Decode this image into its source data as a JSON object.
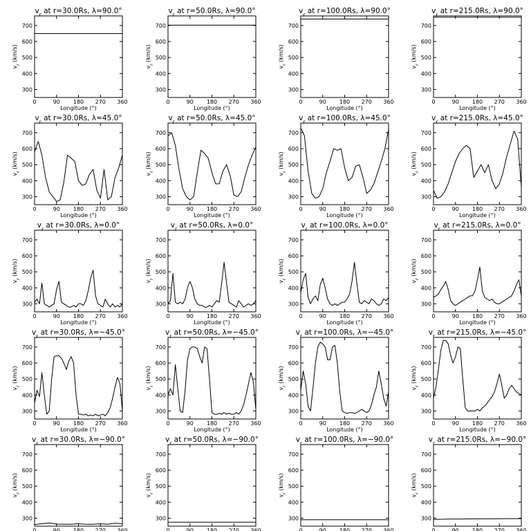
{
  "chart_data": {
    "type": "line",
    "layout": "5x4 small multiples",
    "xlabel": "Longitude (°)",
    "ylabel": "v_r (km/s)",
    "xlim": [
      0,
      360
    ],
    "ylim": [
      250,
      760
    ],
    "xticks": [
      0,
      90,
      180,
      270,
      360
    ],
    "yticks": [
      300,
      400,
      500,
      600,
      700
    ],
    "radii": [
      "30.0",
      "50.0",
      "100.0",
      "215.0"
    ],
    "latitudes": [
      "90.0",
      "45.0",
      "0.0",
      "−45.0",
      "−90.0"
    ],
    "panels": [
      {
        "title": "v_r at r=30.0Rs, λ=90.0°",
        "x": [
          0,
          360
        ],
        "y": [
          650,
          650
        ]
      },
      {
        "title": "v_r at r=50.0Rs, λ=90.0°",
        "x": [
          0,
          360
        ],
        "y": [
          702,
          702
        ]
      },
      {
        "title": "v_r at r=100.0Rs, λ=90.0°",
        "x": [
          0,
          360
        ],
        "y": [
          740,
          740
        ]
      },
      {
        "title": "v_r at r=215.0Rs, λ=90.0°",
        "x": [
          0,
          360
        ],
        "y": [
          752,
          752
        ]
      },
      {
        "title": "v_r at r=30.0Rs, λ=45.0°",
        "x": [
          0,
          15,
          30,
          45,
          60,
          75,
          90,
          105,
          120,
          135,
          150,
          165,
          180,
          195,
          210,
          225,
          240,
          255,
          270,
          285,
          300,
          315,
          330,
          345,
          360
        ],
        "y": [
          580,
          645,
          560,
          420,
          330,
          300,
          270,
          280,
          390,
          560,
          540,
          520,
          400,
          370,
          380,
          440,
          470,
          340,
          290,
          470,
          280,
          300,
          420,
          480,
          560
        ]
      },
      {
        "title": "v_r at r=50.0Rs, λ=45.0°",
        "x": [
          0,
          15,
          30,
          45,
          60,
          75,
          90,
          105,
          120,
          135,
          150,
          165,
          180,
          195,
          210,
          225,
          240,
          255,
          270,
          285,
          300,
          315,
          330,
          345,
          360
        ],
        "y": [
          680,
          700,
          620,
          470,
          350,
          300,
          280,
          300,
          450,
          590,
          570,
          540,
          450,
          380,
          380,
          460,
          500,
          430,
          310,
          300,
          330,
          420,
          500,
          560,
          610
        ]
      },
      {
        "title": "v_r at r=100.0Rs, λ=45.0°",
        "x": [
          0,
          15,
          30,
          45,
          60,
          75,
          90,
          105,
          120,
          135,
          150,
          165,
          180,
          195,
          210,
          225,
          240,
          255,
          270,
          285,
          300,
          315,
          330,
          345,
          360
        ],
        "y": [
          730,
          680,
          460,
          320,
          290,
          300,
          350,
          450,
          520,
          600,
          590,
          600,
          480,
          400,
          420,
          490,
          500,
          420,
          320,
          340,
          380,
          450,
          520,
          600,
          720
        ]
      },
      {
        "title": "v_r at r=215.0Rs, λ=45.0°",
        "x": [
          0,
          15,
          30,
          45,
          60,
          75,
          90,
          105,
          120,
          135,
          150,
          165,
          180,
          195,
          210,
          225,
          240,
          255,
          270,
          285,
          300,
          315,
          330,
          345,
          360
        ],
        "y": [
          340,
          290,
          300,
          330,
          380,
          450,
          520,
          570,
          600,
          620,
          600,
          420,
          460,
          500,
          450,
          500,
          400,
          350,
          380,
          450,
          550,
          630,
          710,
          660,
          360
        ]
      },
      {
        "title": "v_r at r=30.0Rs, λ=0.0°",
        "x": [
          0,
          10,
          20,
          30,
          40,
          50,
          60,
          70,
          80,
          90,
          100,
          110,
          120,
          130,
          140,
          150,
          160,
          170,
          180,
          190,
          200,
          210,
          220,
          230,
          240,
          250,
          260,
          270,
          280,
          290,
          300,
          310,
          320,
          330,
          340,
          350,
          360
        ],
        "y": [
          310,
          330,
          300,
          430,
          300,
          290,
          280,
          290,
          300,
          390,
          440,
          310,
          300,
          290,
          280,
          280,
          290,
          280,
          300,
          300,
          290,
          320,
          380,
          460,
          510,
          350,
          300,
          290,
          280,
          330,
          300,
          280,
          300,
          280,
          290,
          280,
          300
        ]
      },
      {
        "title": "v_r at r=50.0Rs, λ=0.0°",
        "x": [
          0,
          10,
          20,
          30,
          40,
          50,
          60,
          70,
          80,
          90,
          100,
          110,
          120,
          130,
          140,
          150,
          160,
          170,
          180,
          190,
          200,
          210,
          220,
          230,
          240,
          250,
          260,
          270,
          280,
          290,
          300,
          310,
          320,
          330,
          340,
          350,
          360
        ],
        "y": [
          300,
          320,
          490,
          310,
          300,
          310,
          300,
          330,
          400,
          440,
          400,
          330,
          300,
          290,
          290,
          280,
          280,
          290,
          280,
          300,
          320,
          310,
          430,
          560,
          430,
          310,
          300,
          290,
          280,
          320,
          300,
          280,
          290,
          300,
          290,
          300,
          320
        ]
      },
      {
        "title": "v_r at r=100.0Rs, λ=0.0°",
        "x": [
          0,
          10,
          20,
          30,
          40,
          50,
          60,
          70,
          80,
          90,
          100,
          110,
          120,
          130,
          140,
          150,
          160,
          170,
          180,
          190,
          200,
          210,
          220,
          230,
          240,
          250,
          260,
          270,
          280,
          290,
          300,
          310,
          320,
          330,
          340,
          350,
          360
        ],
        "y": [
          370,
          450,
          490,
          340,
          300,
          330,
          350,
          320,
          420,
          460,
          400,
          330,
          300,
          290,
          300,
          290,
          300,
          310,
          310,
          330,
          360,
          440,
          560,
          430,
          310,
          300,
          320,
          310,
          300,
          330,
          320,
          300,
          290,
          300,
          330,
          320,
          340
        ]
      },
      {
        "title": "v_r at r=215.0Rs, λ=0.0°",
        "x": [
          0,
          10,
          20,
          30,
          40,
          50,
          60,
          70,
          80,
          90,
          100,
          110,
          120,
          130,
          140,
          150,
          160,
          170,
          180,
          190,
          200,
          210,
          220,
          230,
          240,
          250,
          260,
          270,
          280,
          290,
          300,
          310,
          320,
          330,
          340,
          350,
          360
        ],
        "y": [
          340,
          350,
          360,
          390,
          410,
          440,
          390,
          320,
          300,
          290,
          300,
          310,
          320,
          330,
          340,
          350,
          350,
          380,
          450,
          530,
          380,
          340,
          330,
          320,
          330,
          310,
          300,
          300,
          310,
          320,
          330,
          340,
          350,
          380,
          420,
          450,
          350
        ]
      },
      {
        "title": "v_r at r=30.0Rs, λ=−45.0°",
        "x": [
          0,
          10,
          20,
          30,
          40,
          50,
          60,
          70,
          80,
          90,
          100,
          110,
          120,
          130,
          140,
          150,
          160,
          170,
          180,
          190,
          200,
          210,
          220,
          230,
          240,
          250,
          260,
          270,
          280,
          290,
          300,
          310,
          320,
          330,
          340,
          350,
          360
        ],
        "y": [
          350,
          430,
          390,
          540,
          400,
          280,
          300,
          500,
          640,
          645,
          645,
          630,
          600,
          560,
          610,
          640,
          600,
          400,
          280,
          280,
          275,
          280,
          270,
          275,
          270,
          280,
          270,
          275,
          280,
          270,
          290,
          320,
          380,
          450,
          510,
          470,
          300
        ]
      },
      {
        "title": "v_r at r=50.0Rs, λ=−45.0°",
        "x": [
          0,
          10,
          20,
          30,
          40,
          50,
          60,
          70,
          80,
          90,
          100,
          110,
          120,
          130,
          140,
          150,
          160,
          170,
          180,
          190,
          200,
          210,
          220,
          230,
          240,
          250,
          260,
          270,
          280,
          290,
          300,
          310,
          320,
          330,
          340,
          350,
          360
        ],
        "y": [
          400,
          440,
          400,
          590,
          440,
          300,
          290,
          430,
          620,
          690,
          700,
          700,
          690,
          640,
          600,
          700,
          690,
          500,
          290,
          280,
          280,
          285,
          280,
          290,
          280,
          285,
          280,
          280,
          290,
          280,
          300,
          340,
          400,
          470,
          540,
          480,
          310
        ]
      },
      {
        "title": "v_r at r=100.0Rs, λ=−45.0°",
        "x": [
          0,
          10,
          20,
          30,
          40,
          50,
          60,
          70,
          80,
          90,
          100,
          110,
          120,
          130,
          140,
          150,
          160,
          170,
          180,
          190,
          200,
          210,
          220,
          230,
          240,
          250,
          260,
          270,
          280,
          290,
          300,
          310,
          320,
          330,
          340,
          350,
          360
        ],
        "y": [
          430,
          550,
          470,
          330,
          300,
          440,
          600,
          700,
          730,
          720,
          700,
          620,
          620,
          700,
          710,
          600,
          420,
          300,
          290,
          285,
          290,
          290,
          285,
          290,
          300,
          310,
          300,
          290,
          300,
          340,
          400,
          450,
          550,
          470,
          380,
          330,
          420
        ]
      },
      {
        "title": "v_r at r=215.0Rs, λ=−45.0°",
        "x": [
          0,
          10,
          20,
          30,
          40,
          50,
          60,
          70,
          80,
          90,
          100,
          110,
          120,
          130,
          140,
          150,
          160,
          170,
          180,
          190,
          200,
          210,
          220,
          230,
          240,
          250,
          260,
          270,
          280,
          290,
          300,
          310,
          320,
          330,
          340,
          350,
          360
        ],
        "y": [
          380,
          450,
          560,
          680,
          740,
          740,
          720,
          650,
          600,
          640,
          700,
          690,
          500,
          320,
          300,
          300,
          300,
          300,
          310,
          300,
          320,
          330,
          350,
          370,
          390,
          420,
          470,
          530,
          460,
          380,
          400,
          440,
          460,
          440,
          420,
          410,
          400
        ]
      },
      {
        "title": "v_r at r=30.0Rs, λ=−90.0°",
        "x": [
          0,
          30,
          60,
          90,
          120,
          150,
          180,
          210,
          240,
          270,
          300,
          330,
          360
        ],
        "y": [
          260,
          265,
          270,
          263,
          262,
          262,
          265,
          262,
          262,
          265,
          262,
          268,
          265
        ]
      },
      {
        "title": "v_r at r=50.0Rs, λ=−90.0°",
        "x": [
          0,
          360
        ],
        "y": [
          275,
          275
        ]
      },
      {
        "title": "v_r at r=100.0Rs, λ=−90.0°",
        "x": [
          0,
          360
        ],
        "y": [
          290,
          290
        ]
      },
      {
        "title": "v_r at r=215.0Rs, λ=−90.0°",
        "x": [
          0,
          60,
          120,
          180,
          240,
          300,
          360
        ],
        "y": [
          292,
          294,
          295,
          296,
          296,
          297,
          297
        ]
      }
    ]
  }
}
